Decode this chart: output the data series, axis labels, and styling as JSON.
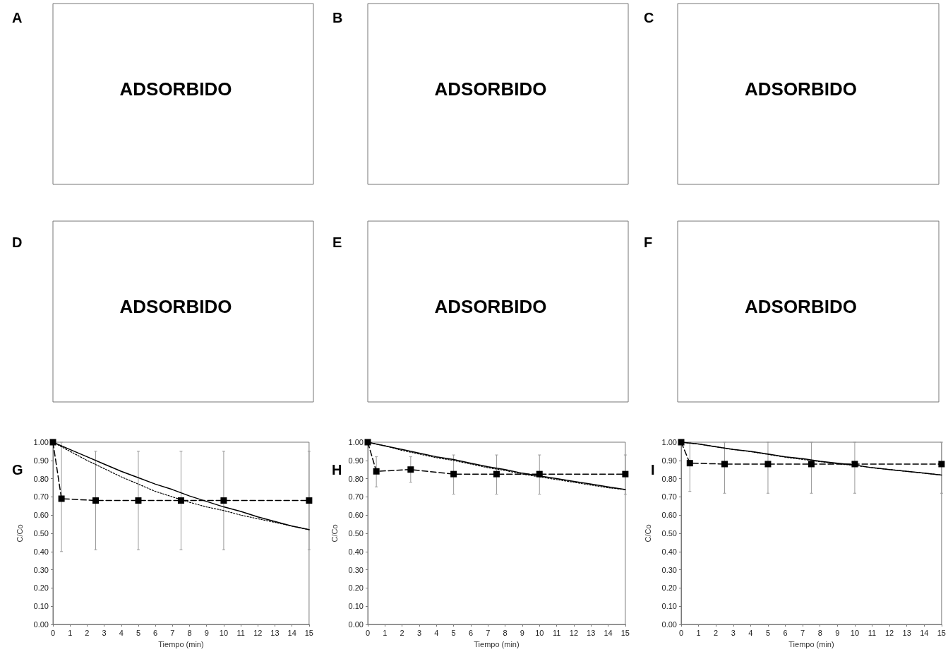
{
  "chart_data": [
    {
      "type": "other",
      "title": "A",
      "annotations": [
        "ADSORBIDO"
      ]
    },
    {
      "type": "other",
      "title": "B",
      "annotations": [
        "ADSORBIDO"
      ]
    },
    {
      "type": "other",
      "title": "C",
      "annotations": [
        "ADSORBIDO"
      ]
    },
    {
      "type": "other",
      "title": "D",
      "annotations": [
        "ADSORBIDO"
      ]
    },
    {
      "type": "other",
      "title": "E",
      "annotations": [
        "ADSORBIDO"
      ]
    },
    {
      "type": "other",
      "title": "F",
      "annotations": [
        "ADSORBIDO"
      ]
    },
    {
      "type": "line",
      "title": "G",
      "xlabel": "Tiempo (min)",
      "ylabel": "C/Co",
      "grid": false,
      "legend": false,
      "xlim": [
        0,
        15
      ],
      "xticks": [
        0,
        1,
        2,
        3,
        4,
        5,
        6,
        7,
        8,
        9,
        10,
        11,
        12,
        13,
        14,
        15
      ],
      "ylim": [
        0,
        1
      ],
      "yticks": [
        {
          "value": 0,
          "label": "0.00"
        },
        {
          "value": 0.1,
          "label": "0.10"
        },
        {
          "value": 0.2,
          "label": "0.20"
        },
        {
          "value": 0.3,
          "label": "0.30"
        },
        {
          "value": 0.4,
          "label": "0.40"
        },
        {
          "value": 0.5,
          "label": "0.50"
        },
        {
          "value": 0.6,
          "label": "0.60"
        },
        {
          "value": 0.7,
          "label": "0.70"
        },
        {
          "value": 0.8,
          "label": "0.80"
        },
        {
          "value": 0.9,
          "label": "0.90"
        },
        {
          "value": 1,
          "label": "1.00"
        }
      ],
      "series": [
        {
          "color": "#000000",
          "line_style": "dashed",
          "marker": "square",
          "x": [
            0,
            0.5,
            2.5,
            5,
            7.5,
            10,
            15
          ],
          "values": [
            1.0,
            0.69,
            0.68,
            0.68,
            0.68,
            0.68,
            0.68
          ],
          "errors": [
            null,
            [
              0.4,
              1.0
            ],
            [
              0.41,
              0.95
            ],
            [
              0.41,
              0.95
            ],
            [
              0.41,
              0.95
            ],
            [
              0.41,
              0.95
            ],
            [
              0.41,
              0.95
            ]
          ]
        },
        {
          "color": "#000000",
          "line_style": "solid",
          "marker": "none",
          "x": [
            0,
            1,
            2,
            3,
            4,
            5,
            6,
            7,
            8,
            9,
            10,
            11,
            12,
            13,
            14,
            15
          ],
          "values": [
            1.0,
            0.96,
            0.92,
            0.88,
            0.84,
            0.805,
            0.77,
            0.74,
            0.705,
            0.675,
            0.645,
            0.62,
            0.59,
            0.565,
            0.54,
            0.52
          ]
        },
        {
          "color": "#000000",
          "line_style": "dotted",
          "marker": "none",
          "x": [
            0,
            1,
            2,
            3,
            4,
            5,
            6,
            7,
            8,
            9,
            10,
            11,
            12,
            13,
            14,
            15
          ],
          "values": [
            1.0,
            0.95,
            0.9,
            0.855,
            0.81,
            0.77,
            0.73,
            0.7,
            0.67,
            0.645,
            0.625,
            0.6,
            0.58,
            0.56,
            0.54,
            0.52
          ]
        }
      ]
    },
    {
      "type": "line",
      "title": "H",
      "xlabel": "Tiempo (min)",
      "ylabel": "C/Co",
      "grid": false,
      "legend": false,
      "xlim": [
        0,
        15
      ],
      "xticks": [
        0,
        1,
        2,
        3,
        4,
        5,
        6,
        7,
        8,
        9,
        10,
        11,
        12,
        13,
        14,
        15
      ],
      "ylim": [
        0,
        1
      ],
      "yticks": [
        {
          "value": 0,
          "label": "0.00"
        },
        {
          "value": 0.1,
          "label": "0.10"
        },
        {
          "value": 0.2,
          "label": "0.20"
        },
        {
          "value": 0.3,
          "label": "0.30"
        },
        {
          "value": 0.4,
          "label": "0.40"
        },
        {
          "value": 0.5,
          "label": "0.50"
        },
        {
          "value": 0.6,
          "label": "0.60"
        },
        {
          "value": 0.7,
          "label": "0.70"
        },
        {
          "value": 0.8,
          "label": "0.80"
        },
        {
          "value": 0.9,
          "label": "0.90"
        },
        {
          "value": 1,
          "label": "1.00"
        }
      ],
      "series": [
        {
          "color": "#000000",
          "line_style": "dashed",
          "marker": "square",
          "x": [
            0,
            0.5,
            2.5,
            5,
            7.5,
            10,
            15
          ],
          "values": [
            1.0,
            0.84,
            0.85,
            0.825,
            0.825,
            0.825,
            0.825
          ],
          "errors": [
            null,
            [
              0.755,
              0.92
            ],
            [
              0.78,
              0.92
            ],
            [
              0.715,
              0.93
            ],
            [
              0.715,
              0.93
            ],
            [
              0.715,
              0.93
            ],
            [
              0.715,
              0.93
            ]
          ]
        },
        {
          "color": "#000000",
          "line_style": "solid",
          "marker": "none",
          "x": [
            0,
            1,
            2,
            3,
            4,
            5,
            6,
            7,
            8,
            9,
            10,
            11,
            12,
            13,
            14,
            15
          ],
          "values": [
            1.0,
            0.98,
            0.96,
            0.94,
            0.92,
            0.905,
            0.885,
            0.865,
            0.85,
            0.83,
            0.815,
            0.8,
            0.785,
            0.77,
            0.755,
            0.74
          ]
        },
        {
          "color": "#000000",
          "line_style": "dotted",
          "marker": "none",
          "x": [
            0,
            1,
            2,
            3,
            4,
            5,
            6,
            7,
            8,
            9,
            10,
            11,
            12,
            13,
            14,
            15
          ],
          "values": [
            1.0,
            0.98,
            0.955,
            0.935,
            0.915,
            0.9,
            0.88,
            0.86,
            0.845,
            0.825,
            0.81,
            0.795,
            0.78,
            0.765,
            0.75,
            0.74
          ]
        }
      ]
    },
    {
      "type": "line",
      "title": "I",
      "xlabel": "Tiempo (min)",
      "ylabel": "C/Co",
      "grid": false,
      "legend": false,
      "xlim": [
        0,
        15
      ],
      "xticks": [
        0,
        1,
        2,
        3,
        4,
        5,
        6,
        7,
        8,
        9,
        10,
        11,
        12,
        13,
        14,
        15
      ],
      "ylim": [
        0,
        1
      ],
      "yticks": [
        {
          "value": 0,
          "label": "0.00"
        },
        {
          "value": 0.1,
          "label": "0.10"
        },
        {
          "value": 0.2,
          "label": "0.20"
        },
        {
          "value": 0.3,
          "label": "0.30"
        },
        {
          "value": 0.4,
          "label": "0.40"
        },
        {
          "value": 0.5,
          "label": "0.50"
        },
        {
          "value": 0.6,
          "label": "0.60"
        },
        {
          "value": 0.7,
          "label": "0.70"
        },
        {
          "value": 0.8,
          "label": "0.80"
        },
        {
          "value": 0.9,
          "label": "0.90"
        },
        {
          "value": 1,
          "label": "1.00"
        }
      ],
      "series": [
        {
          "color": "#000000",
          "line_style": "dashed",
          "marker": "square",
          "x": [
            0,
            0.5,
            2.5,
            5,
            7.5,
            10,
            15
          ],
          "values": [
            1.0,
            0.885,
            0.88,
            0.88,
            0.88,
            0.88,
            0.88
          ],
          "errors": [
            null,
            [
              0.73,
              1.0
            ],
            [
              0.72,
              1.0
            ],
            [
              0.72,
              1.0
            ],
            [
              0.72,
              1.0
            ],
            [
              0.72,
              1.0
            ],
            [
              0.72,
              1.0
            ]
          ]
        },
        {
          "color": "#000000",
          "line_style": "solid",
          "marker": "none",
          "x": [
            0,
            1,
            2,
            3,
            4,
            5,
            6,
            7,
            8,
            9,
            10,
            11,
            12,
            13,
            14,
            15
          ],
          "values": [
            1.0,
            0.99,
            0.975,
            0.96,
            0.95,
            0.935,
            0.92,
            0.91,
            0.895,
            0.885,
            0.875,
            0.86,
            0.85,
            0.84,
            0.83,
            0.82
          ]
        },
        {
          "color": "#000000",
          "line_style": "dotted",
          "marker": "none",
          "x": [
            0,
            1,
            2,
            3,
            4,
            5,
            6,
            7,
            8,
            9,
            10,
            11,
            12,
            13,
            14,
            15
          ],
          "values": [
            1.0,
            0.99,
            0.975,
            0.96,
            0.948,
            0.933,
            0.918,
            0.905,
            0.893,
            0.882,
            0.872,
            0.86,
            0.85,
            0.84,
            0.83,
            0.82
          ]
        }
      ]
    }
  ]
}
